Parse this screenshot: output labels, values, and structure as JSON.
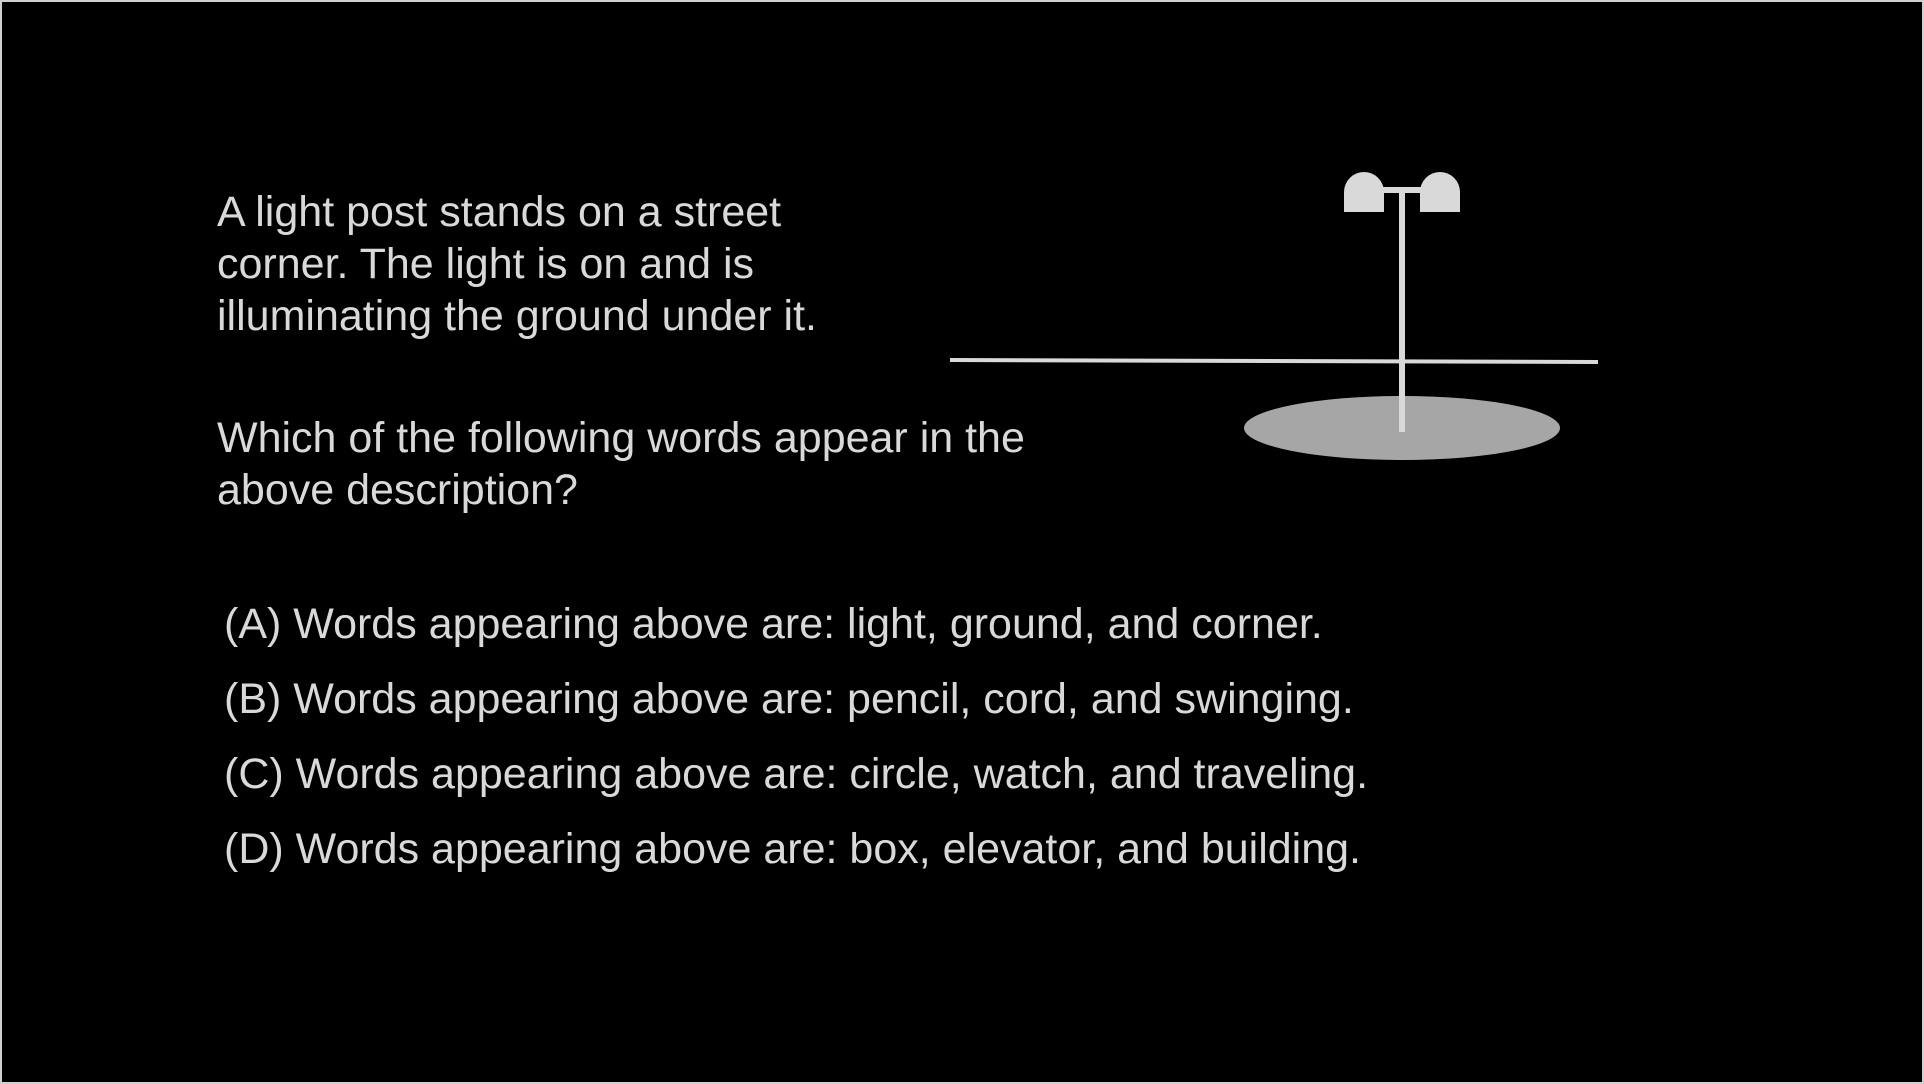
{
  "description": "A light post stands on a street\ncorner.  The light is on and is\nilluminating the ground under it.",
  "question": "Which of the following words appear in the\nabove description?",
  "options": [
    {
      "label": "(A) Words appearing above are: light, ground, and corner."
    },
    {
      "label": "(B) Words appearing above are: pencil, cord, and swinging."
    },
    {
      "label": "(C) Words appearing above are: circle, watch, and traveling."
    },
    {
      "label": "(D) Words appearing above are: box, elevator, and building."
    }
  ],
  "colors": {
    "background": "#000000",
    "text": "#d9d9d9",
    "lamp": "#d9d9d9",
    "ground_light": "#a6a6a6"
  },
  "illustration": {
    "icon": "street-light-post-icon"
  }
}
